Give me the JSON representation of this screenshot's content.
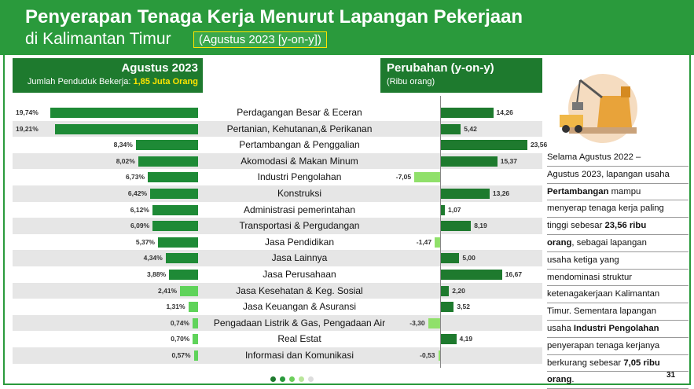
{
  "header": {
    "title_line1": "Penyerapan Tenaga Kerja Menurut Lapangan Pekerjaan",
    "title_line2": "di Kalimantan Timur",
    "period": "(Agustus 2023 [y-on-y])"
  },
  "left_panel": {
    "heading": "Agustus 2023",
    "subheading_prefix": "Jumlah Penduduk Bekerja: ",
    "subheading_value": "1,85 Juta Orang"
  },
  "right_panel": {
    "heading": "Perubahan (y-on-y)",
    "subheading": "(Ribu orang)"
  },
  "colors": {
    "header_green": "#2a9a3c",
    "dark_green": "#1e7a2e",
    "mid_green": "#1e8a36",
    "light_green": "#5fd35a",
    "negative_bar": "#90e06a",
    "accent_yellow": "#ffe400"
  },
  "chart_data": {
    "type": "bar",
    "categories": [
      "Perdagangan Besar & Eceran",
      "Pertanian, Kehutanan,& Perikanan",
      "Pertambangan & Penggalian",
      "Akomodasi & Makan Minum",
      "Industri Pengolahan",
      "Konstruksi",
      "Administrasi pemerintahan",
      "Transportasi & Pergudangan",
      "Jasa Pendidikan",
      "Jasa Lainnya",
      "Jasa Perusahaan",
      "Jasa Kesehatan & Keg. Sosial",
      "Jasa Keuangan & Asuransi",
      "Pengadaan Listrik & Gas, Pengadaan Air",
      "Real Estat",
      "Informasi dan Komunikasi"
    ],
    "series": [
      {
        "name": "Agustus 2023",
        "values": [
          19.74,
          19.21,
          8.34,
          8.02,
          6.73,
          6.42,
          6.12,
          6.09,
          5.37,
          4.34,
          3.88,
          2.41,
          1.31,
          0.74,
          0.7,
          0.57
        ],
        "labels": [
          "19,74%",
          "19,21%",
          "8,34%",
          "8,02%",
          "6,73%",
          "6,42%",
          "6,12%",
          "6,09%",
          "5,37%",
          "4,34%",
          "3,88%",
          "2,41%",
          "1,31%",
          "0,74%",
          "0,70%",
          "0,57%"
        ]
      },
      {
        "name": "Perubahan (y-on-y)",
        "values": [
          14.26,
          5.42,
          23.56,
          15.37,
          -7.05,
          13.26,
          1.07,
          8.19,
          -1.47,
          5.0,
          16.67,
          2.2,
          3.52,
          -3.3,
          4.19,
          -0.53
        ],
        "labels": [
          "14,26",
          "5,42",
          "23,56",
          "15,37",
          "-7,05",
          "13,26",
          "1,07",
          "8,19",
          "-1,47",
          "5,00",
          "16,67",
          "2,20",
          "3,52",
          "-3,30",
          "4,19",
          "-0,53"
        ]
      }
    ]
  },
  "sidebar_text": {
    "line1": "Selama Agustus 2022 –",
    "line2": "Agustus 2023, lapangan usaha",
    "line3_bold": "Pertambangan",
    "line3_rest": " mampu",
    "line4": "menyerap tenaga kerja paling",
    "line5_prefix": "tinggi sebesar ",
    "line5_bold": "23,56 ribu",
    "line6_bold": "orang",
    "line6_rest": ", sebagai lapangan",
    "line7": "usaha ketiga yang",
    "line8": "mendominasi struktur",
    "line9": "ketenagakerjaan Kalimantan",
    "line10": "Timur. Sementara lapangan",
    "line11_prefix": "usaha ",
    "line11_bold": "Industri Pengolahan",
    "line12": "penyerapan tenaga kerjanya",
    "line13_prefix": "berkurang sebesar ",
    "line13_bold": "7,05 ribu",
    "line14_bold": "orang",
    "line14_rest": "."
  },
  "footer": {
    "page_number": "31",
    "dot_colors": [
      "#1e7a2e",
      "#2a9a3c",
      "#6ccf5a",
      "#b9e69a",
      "#dddddd"
    ]
  }
}
